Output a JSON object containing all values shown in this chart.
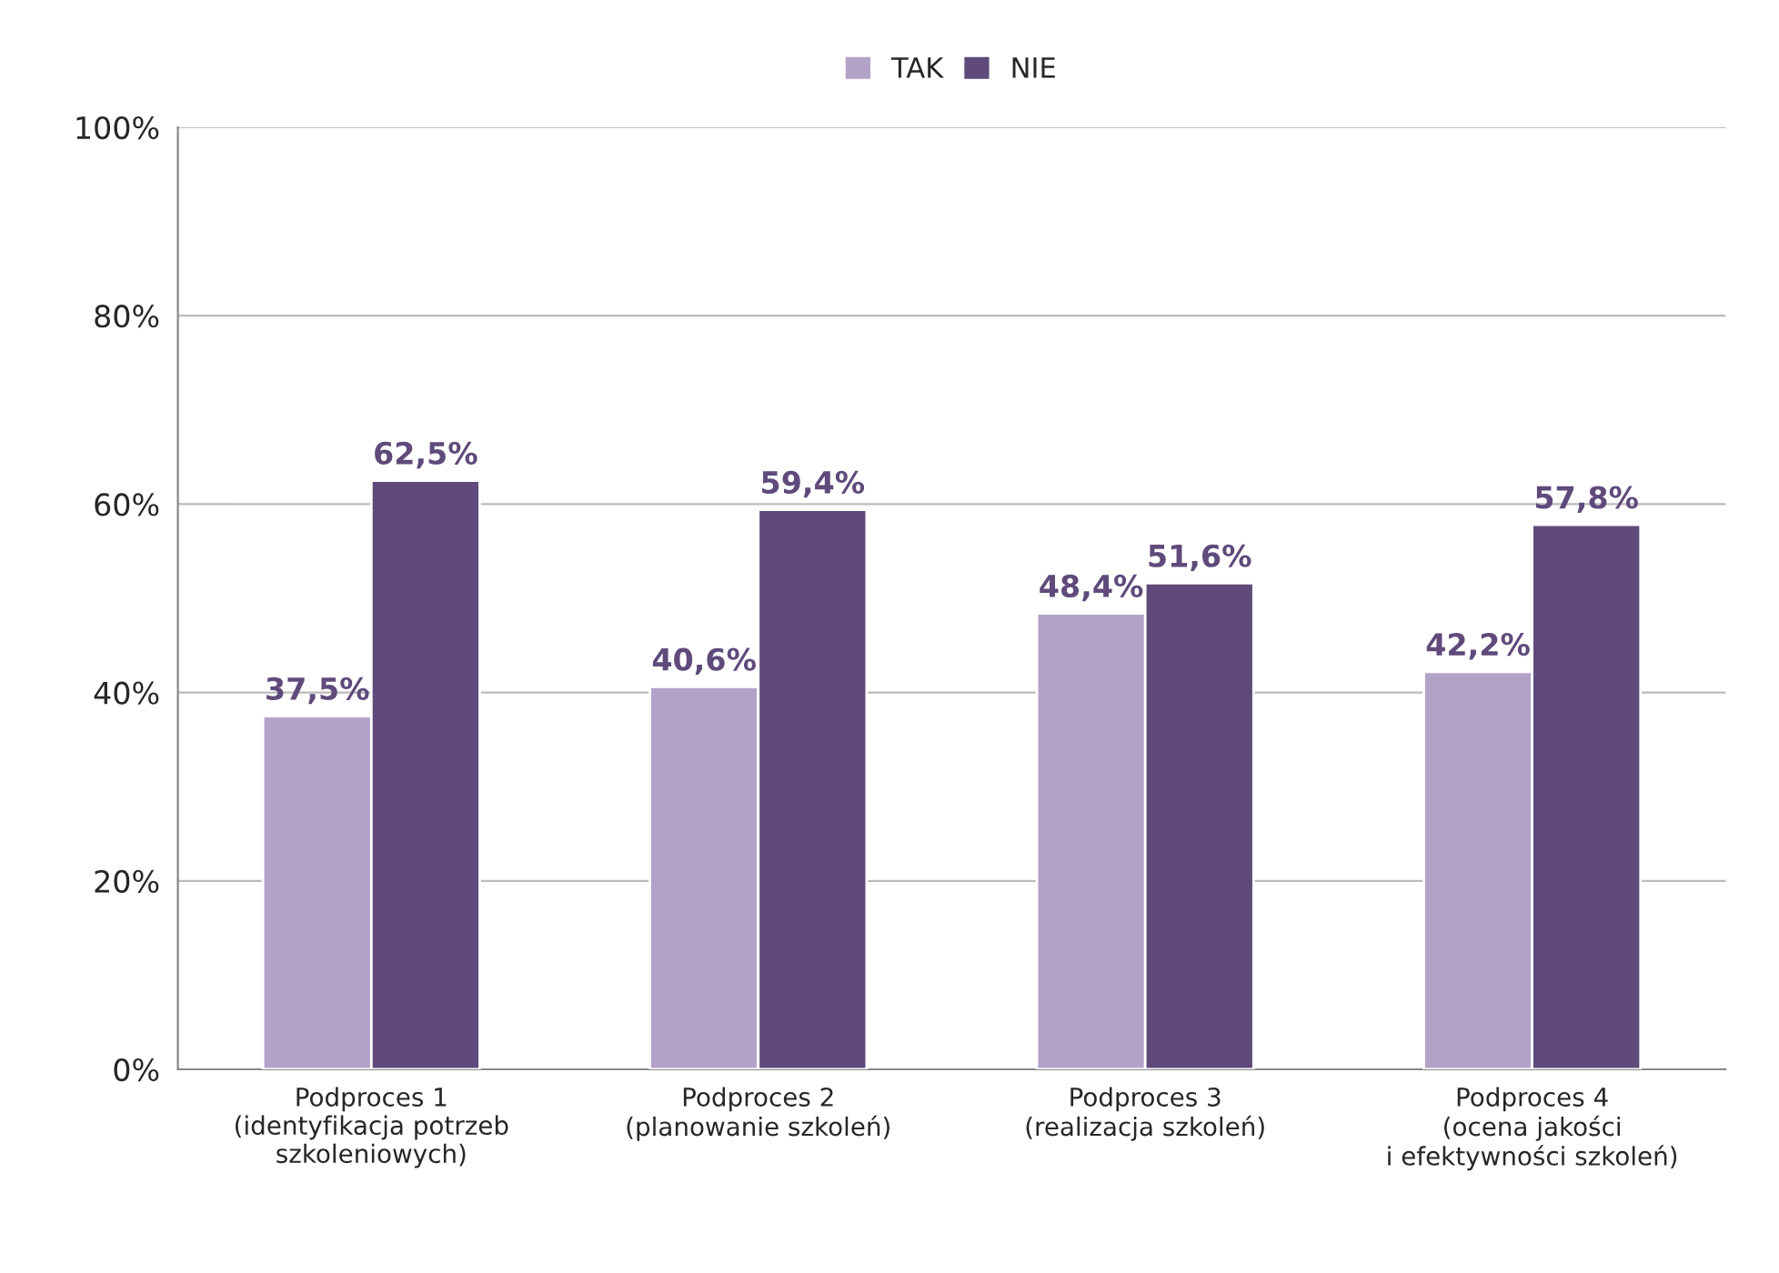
{
  "chart_data": {
    "type": "bar",
    "categories": [
      "Podproces 1\n(identyfikacja potrzeb\nszkoleniowych)",
      "Podproces 2\n(planowanie szkoleń)",
      "Podproces 3\n(realizacja szkoleń)",
      "Podproces 4\n(ocena jakości\ni efektywności szkoleń)"
    ],
    "series": [
      {
        "name": "TAK",
        "color": "#b3a2c8",
        "values": [
          37.5,
          40.6,
          48.4,
          42.2
        ],
        "value_labels": [
          "37,5%",
          "40,6%",
          "48,4%",
          "42,2%"
        ]
      },
      {
        "name": "NIE",
        "color": "#5f4a7b",
        "values": [
          62.5,
          59.4,
          51.6,
          57.8
        ],
        "value_labels": [
          "62,5%",
          "59,4%",
          "51,6%",
          "57,8%"
        ]
      }
    ],
    "ylim": [
      0,
      100
    ],
    "yticks": [
      {
        "value": 0,
        "label": "0%"
      },
      {
        "value": 20,
        "label": "20%"
      },
      {
        "value": 40,
        "label": "40%"
      },
      {
        "value": 60,
        "label": "60%"
      },
      {
        "value": 80,
        "label": "80%"
      },
      {
        "value": 100,
        "label": "100%"
      }
    ],
    "grid": "y",
    "legend": "top"
  }
}
